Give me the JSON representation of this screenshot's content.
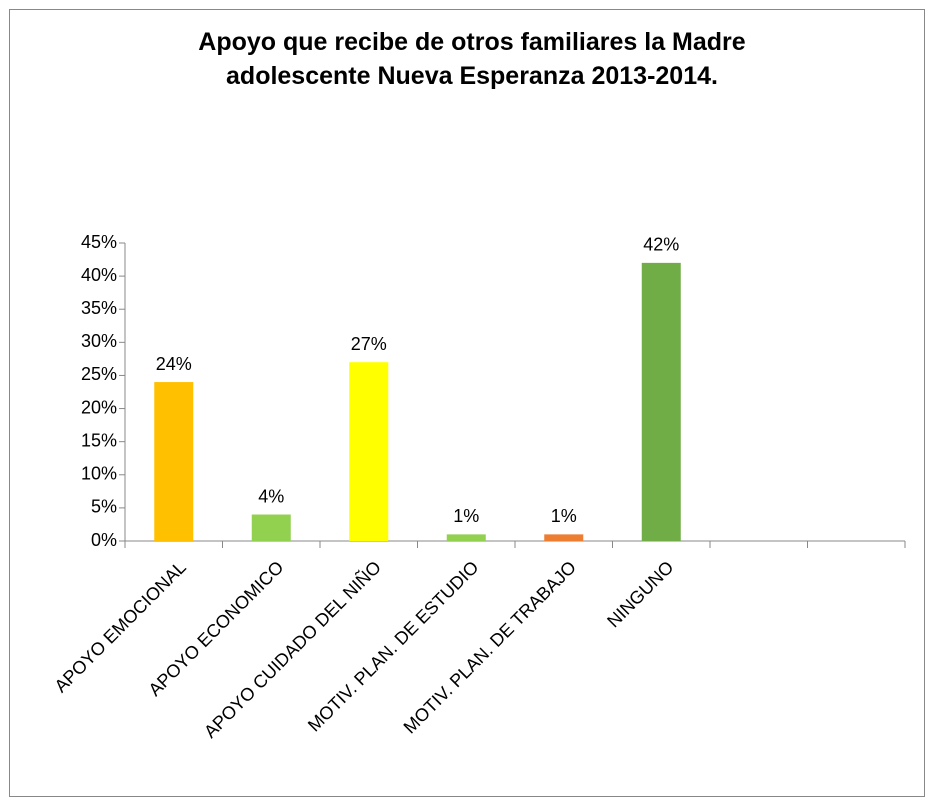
{
  "chart_data": {
    "type": "bar",
    "title": [
      "Apoyo  que recibe de otros familiares  la Madre",
      "adolescente Nueva Esperanza 2013-2014."
    ],
    "categories": [
      "APOYO EMOCIONAL",
      "APOYO ECONOMICO",
      "APOYO CUIDADO DEL NIÑO",
      "MOTIV.  PLAN. DE ESTUDIO",
      "MOTIV. PLAN. DE TRABAJO",
      "NINGUNO",
      null,
      null
    ],
    "values": [
      24,
      4,
      27,
      1,
      1,
      42,
      null,
      null
    ],
    "value_labels": [
      "24%",
      "4%",
      "27%",
      "1%",
      "1%",
      "42%",
      null,
      null
    ],
    "colors": [
      "#FFC000",
      "#92D050",
      "#FFFF00",
      "#92D050",
      "#ED7D31",
      "#70AD47",
      null,
      null
    ],
    "ylim": [
      0,
      45
    ],
    "yticks": [
      {
        "value": 0,
        "label": "0%"
      },
      {
        "value": 5,
        "label": "5%"
      },
      {
        "value": 10,
        "label": "10%"
      },
      {
        "value": 15,
        "label": "15%"
      },
      {
        "value": 20,
        "label": "20%"
      },
      {
        "value": 25,
        "label": "25%"
      },
      {
        "value": 30,
        "label": "30%"
      },
      {
        "value": 35,
        "label": "35%"
      },
      {
        "value": 40,
        "label": "40%"
      },
      {
        "value": 45,
        "label": "45%"
      }
    ],
    "grid": false
  }
}
